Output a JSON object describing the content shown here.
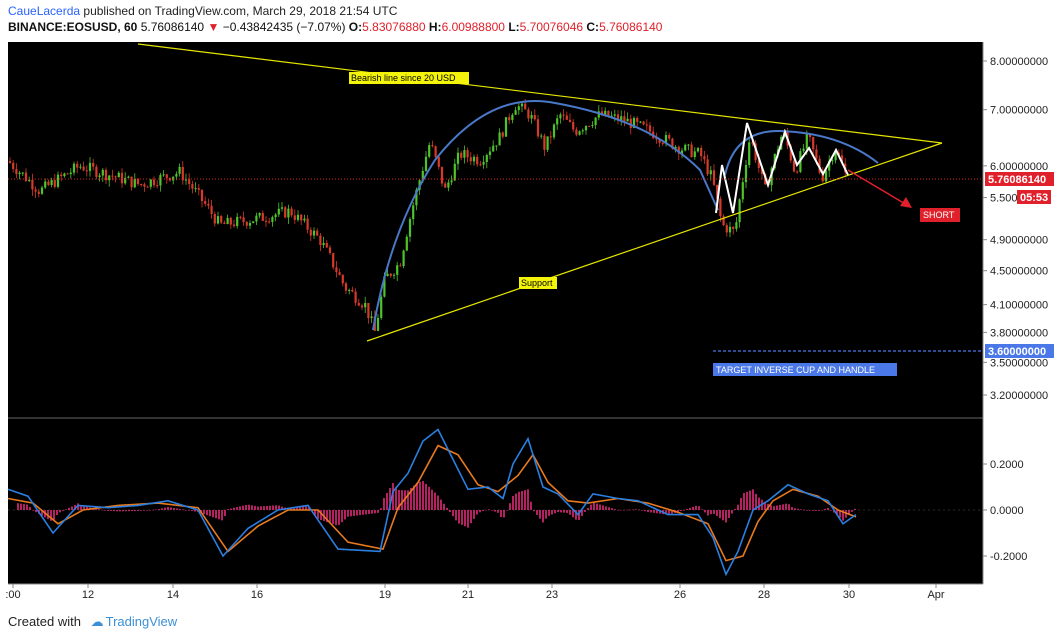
{
  "header": {
    "author": "CaueLacerda",
    "published_text": "published on TradingView.com, March 29, 2018 21:54 UTC",
    "symbol": "BINANCE:EOSUSD, 60",
    "last": "5.76086140",
    "arrow": "▼",
    "change": "−0.43842435 (−7.07%)",
    "o_label": "O:",
    "o_val": "5.83076880",
    "h_label": "H:",
    "h_val": "6.00988800",
    "l_label": "L:",
    "l_val": "5.70076046",
    "c_label": "C:",
    "c_val": "5.76086140"
  },
  "footer": {
    "created_with": "Created with",
    "brand": "TradingView"
  },
  "colors": {
    "up": "#4ec42b",
    "down": "#d83a2a",
    "yellow_line": "#e6e600",
    "blue_curve": "#4a78c8",
    "red": "#e0202a",
    "macd_line": "#2a7fe0",
    "signal_line": "#e87a1e",
    "hist": "#e02a7a"
  },
  "chart_data": {
    "type": "line",
    "price_axis": {
      "ticks": [
        "8.00000000",
        "7.00000000",
        "6.00000000",
        "5.50000000",
        "4.90000000",
        "4.50000000",
        "4.10000000",
        "3.80000000",
        "3.50000000",
        "3.20000000"
      ],
      "tick_values": [
        8.0,
        7.0,
        6.0,
        5.5,
        4.9,
        4.5,
        4.1,
        3.8,
        3.5,
        3.2
      ],
      "scale": "log"
    },
    "x_ticks": [
      ":00",
      "12",
      "14",
      "16",
      "19",
      "21",
      "23",
      "26",
      "28",
      "30",
      "Apr"
    ],
    "price_path": [
      [
        0,
        6.2
      ],
      [
        40,
        5.6
      ],
      [
        80,
        6.0
      ],
      [
        140,
        5.7
      ],
      [
        180,
        5.9
      ],
      [
        220,
        5.1
      ],
      [
        260,
        5.2
      ],
      [
        290,
        5.3
      ],
      [
        320,
        4.9
      ],
      [
        345,
        4.3
      ],
      [
        365,
        4.1
      ],
      [
        375,
        3.8
      ],
      [
        385,
        4.4
      ],
      [
        400,
        4.6
      ],
      [
        415,
        5.5
      ],
      [
        430,
        6.4
      ],
      [
        445,
        5.6
      ],
      [
        460,
        6.2
      ],
      [
        480,
        6.1
      ],
      [
        500,
        6.5
      ],
      [
        515,
        7.1
      ],
      [
        530,
        6.9
      ],
      [
        545,
        6.3
      ],
      [
        560,
        6.9
      ],
      [
        575,
        6.6
      ],
      [
        600,
        6.9
      ],
      [
        625,
        6.8
      ],
      [
        650,
        6.6
      ],
      [
        680,
        6.3
      ],
      [
        700,
        6.2
      ],
      [
        712,
        5.8
      ],
      [
        722,
        5.1
      ],
      [
        735,
        5.0
      ],
      [
        750,
        6.5
      ],
      [
        765,
        5.6
      ],
      [
        783,
        6.6
      ],
      [
        795,
        5.9
      ],
      [
        808,
        6.5
      ],
      [
        822,
        5.8
      ],
      [
        835,
        6.3
      ],
      [
        848,
        5.76
      ]
    ],
    "annotations": {
      "resistance_label": "Bearish line since 20 USD",
      "support_label": "Support",
      "short_label": "SHORT",
      "target_label": "TARGET INVERSE CUP AND HANDLE",
      "current_price": "5.76086140",
      "bar_countdown": "05:53",
      "target_price": "3.60000000"
    },
    "macd": {
      "ticks": [
        "0.2000",
        "0.0000",
        "-0.2000"
      ],
      "tick_values": [
        0.2,
        0.0,
        -0.2
      ],
      "macd_path": [
        [
          0,
          0.09
        ],
        [
          20,
          0.06
        ],
        [
          45,
          -0.1
        ],
        [
          70,
          0.02
        ],
        [
          100,
          0.01
        ],
        [
          130,
          0.02
        ],
        [
          160,
          0.04
        ],
        [
          190,
          0.0
        ],
        [
          215,
          -0.2
        ],
        [
          240,
          -0.08
        ],
        [
          270,
          0.0
        ],
        [
          300,
          0.02
        ],
        [
          330,
          -0.17
        ],
        [
          372,
          -0.18
        ],
        [
          385,
          0.08
        ],
        [
          400,
          0.16
        ],
        [
          415,
          0.3
        ],
        [
          430,
          0.35
        ],
        [
          445,
          0.22
        ],
        [
          460,
          0.09
        ],
        [
          480,
          0.1
        ],
        [
          495,
          0.05
        ],
        [
          505,
          0.2
        ],
        [
          520,
          0.31
        ],
        [
          535,
          0.1
        ],
        [
          550,
          0.07
        ],
        [
          570,
          -0.02
        ],
        [
          585,
          0.07
        ],
        [
          610,
          0.05
        ],
        [
          630,
          0.04
        ],
        [
          660,
          -0.02
        ],
        [
          690,
          -0.02
        ],
        [
          705,
          -0.12
        ],
        [
          718,
          -0.28
        ],
        [
          730,
          -0.18
        ],
        [
          745,
          0.0
        ],
        [
          760,
          0.04
        ],
        [
          780,
          0.11
        ],
        [
          800,
          0.07
        ],
        [
          820,
          0.04
        ],
        [
          835,
          -0.06
        ],
        [
          848,
          -0.02
        ]
      ],
      "signal_path": [
        [
          0,
          0.05
        ],
        [
          25,
          0.03
        ],
        [
          50,
          -0.06
        ],
        [
          75,
          0.0
        ],
        [
          110,
          0.02
        ],
        [
          150,
          0.03
        ],
        [
          190,
          0.01
        ],
        [
          220,
          -0.18
        ],
        [
          250,
          -0.07
        ],
        [
          280,
          0.0
        ],
        [
          310,
          0.0
        ],
        [
          340,
          -0.14
        ],
        [
          375,
          -0.17
        ],
        [
          390,
          0.01
        ],
        [
          410,
          0.12
        ],
        [
          430,
          0.28
        ],
        [
          450,
          0.24
        ],
        [
          470,
          0.11
        ],
        [
          490,
          0.08
        ],
        [
          510,
          0.15
        ],
        [
          525,
          0.24
        ],
        [
          540,
          0.12
        ],
        [
          560,
          0.04
        ],
        [
          580,
          0.03
        ],
        [
          610,
          0.05
        ],
        [
          640,
          0.03
        ],
        [
          670,
          -0.01
        ],
        [
          700,
          -0.06
        ],
        [
          718,
          -0.22
        ],
        [
          735,
          -0.2
        ],
        [
          750,
          -0.05
        ],
        [
          765,
          0.04
        ],
        [
          785,
          0.09
        ],
        [
          810,
          0.06
        ],
        [
          830,
          0.0
        ],
        [
          848,
          -0.03
        ]
      ]
    }
  }
}
